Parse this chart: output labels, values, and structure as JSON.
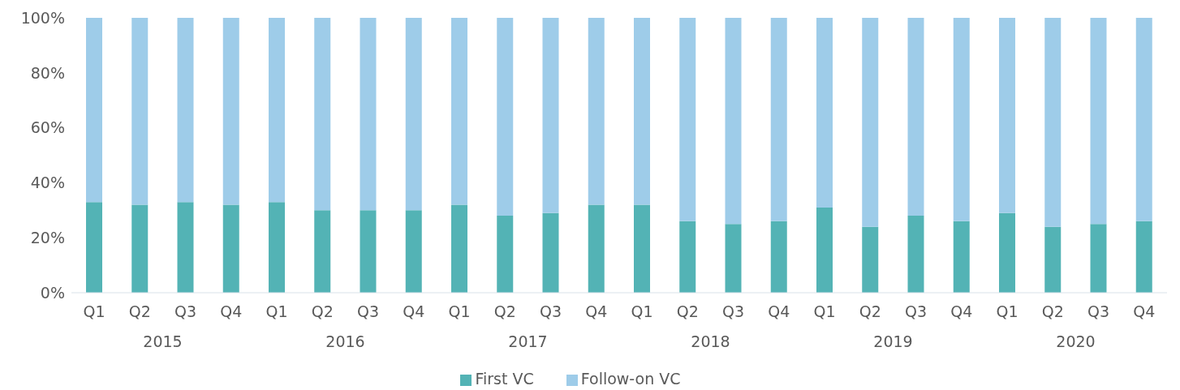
{
  "chart_data": {
    "type": "bar",
    "stacked": true,
    "categories": [
      "Q1",
      "Q2",
      "Q3",
      "Q4",
      "Q1",
      "Q2",
      "Q3",
      "Q4",
      "Q1",
      "Q2",
      "Q3",
      "Q4",
      "Q1",
      "Q2",
      "Q3",
      "Q4",
      "Q1",
      "Q2",
      "Q3",
      "Q4",
      "Q1",
      "Q2",
      "Q3",
      "Q4"
    ],
    "series": [
      {
        "name": "First VC",
        "color": "#53b3b5",
        "values": [
          33,
          32,
          33,
          32,
          33,
          30,
          30,
          30,
          32,
          28,
          29,
          32,
          32,
          26,
          25,
          26,
          31,
          24,
          28,
          26,
          29,
          24,
          25,
          26
        ]
      },
      {
        "name": "Follow-on VC",
        "color": "#9ecce9",
        "values": [
          67,
          68,
          67,
          68,
          67,
          70,
          70,
          70,
          68,
          72,
          71,
          68,
          68,
          74,
          75,
          74,
          69,
          76,
          72,
          74,
          71,
          76,
          75,
          74
        ]
      }
    ],
    "ylim": [
      0,
      100
    ],
    "yticks": [
      {
        "value": 0,
        "label": "0%"
      },
      {
        "value": 20,
        "label": "20%"
      },
      {
        "value": 40,
        "label": "40%"
      },
      {
        "value": 60,
        "label": "60%"
      },
      {
        "value": 80,
        "label": "80%"
      },
      {
        "value": 100,
        "label": "100%"
      }
    ],
    "annotations": [
      "2015",
      "2016",
      "2017",
      "2018",
      "2019",
      "2020"
    ],
    "grid": false,
    "legend": "bottom"
  }
}
